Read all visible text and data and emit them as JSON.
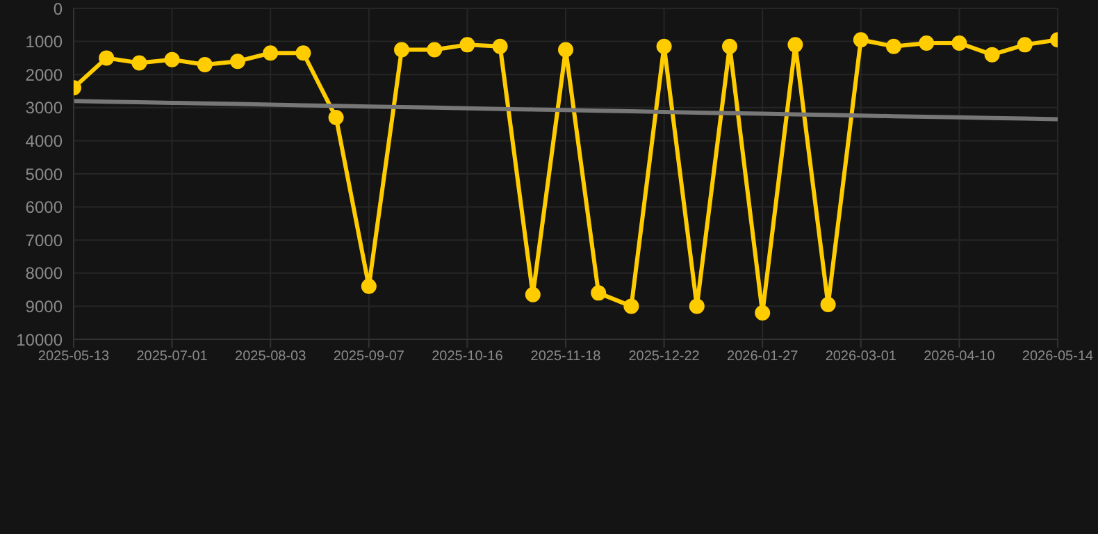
{
  "chart_data": {
    "type": "line",
    "categories": [
      "2025-05-13",
      null,
      null,
      "2025-07-01",
      null,
      null,
      "2025-08-03",
      null,
      null,
      "2025-09-07",
      null,
      null,
      "2025-10-16",
      null,
      null,
      "2025-11-18",
      null,
      null,
      "2025-12-22",
      null,
      null,
      "2026-01-27",
      null,
      null,
      "2026-03-01",
      null,
      null,
      "2026-04-10",
      null,
      null,
      "2026-05-14"
    ],
    "series": [
      {
        "color": "#ffcc00",
        "marker": "circle",
        "values": [
          2400,
          1500,
          1650,
          1550,
          1700,
          1600,
          1350,
          1350,
          3300,
          8400,
          1250,
          1250,
          1100,
          1150,
          8650,
          1250,
          8600,
          9000,
          1150,
          9000,
          1150,
          9200,
          1100,
          8950,
          950,
          1150,
          1050,
          1050,
          1400,
          1100,
          950
        ]
      },
      {
        "type": "line",
        "color": "#777777",
        "marker": "none",
        "values": [
          2800,
          2820,
          2835,
          2855,
          2875,
          2890,
          2910,
          2930,
          2945,
          2965,
          2985,
          3000,
          3020,
          3040,
          3055,
          3075,
          3095,
          3110,
          3130,
          3150,
          3165,
          3185,
          3205,
          3220,
          3240,
          3260,
          3275,
          3295,
          3315,
          3330,
          3350
        ]
      }
    ],
    "ylim": [
      10000,
      0
    ],
    "yticks": [
      0,
      1000,
      2000,
      3000,
      4000,
      5000,
      6000,
      7000,
      8000,
      9000,
      10000
    ],
    "grid": true
  }
}
